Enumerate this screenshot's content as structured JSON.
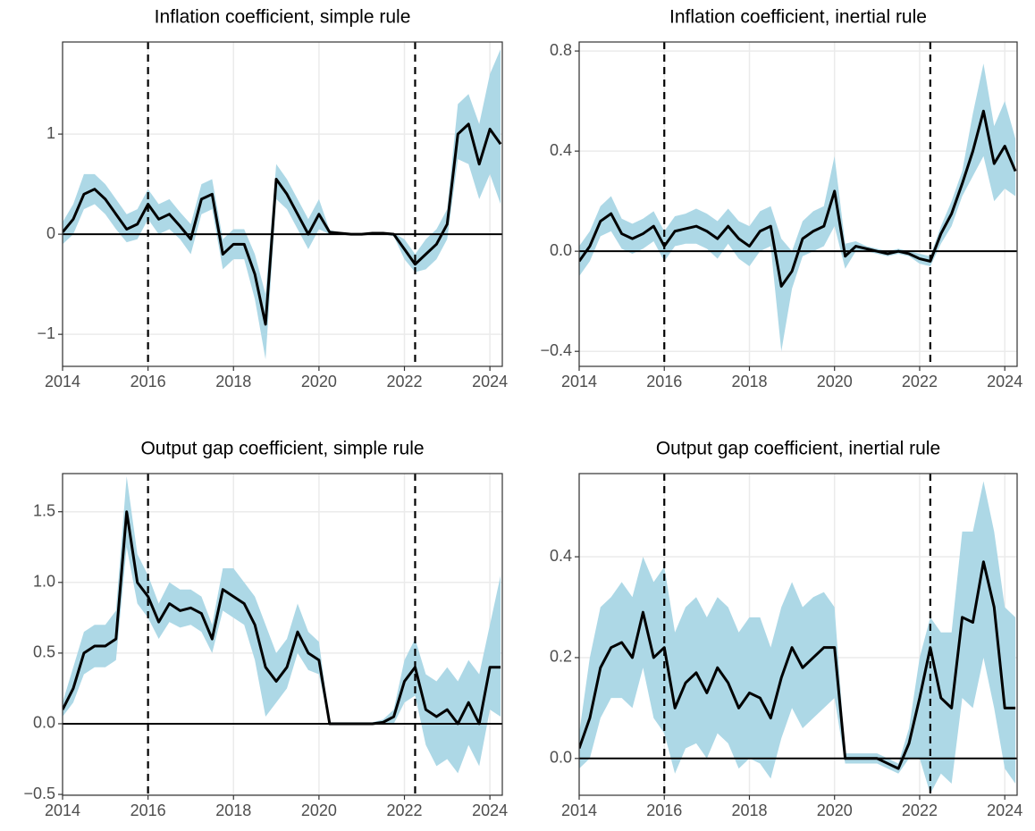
{
  "chart_data": [
    {
      "type": "line",
      "title": "Inflation coefficient, simple rule",
      "x": [
        2014,
        2014.25,
        2014.5,
        2014.75,
        2015,
        2015.25,
        2015.5,
        2015.75,
        2016,
        2016.25,
        2016.5,
        2016.75,
        2017,
        2017.25,
        2017.5,
        2017.75,
        2018,
        2018.25,
        2018.5,
        2018.75,
        2019,
        2019.25,
        2019.5,
        2019.75,
        2020,
        2020.25,
        2020.5,
        2020.75,
        2021,
        2021.25,
        2021.5,
        2021.75,
        2022,
        2022.25,
        2022.5,
        2022.75,
        2023,
        2023.25,
        2023.5,
        2023.75,
        2024,
        2024.25
      ],
      "series": [
        {
          "color": "#000000",
          "values": [
            0.02,
            0.15,
            0.4,
            0.45,
            0.35,
            0.2,
            0.05,
            0.1,
            0.3,
            0.15,
            0.2,
            0.08,
            -0.05,
            0.35,
            0.4,
            -0.2,
            -0.1,
            -0.1,
            -0.4,
            -0.9,
            0.55,
            0.4,
            0.2,
            0.0,
            0.2,
            0.02,
            0.01,
            0.0,
            0.0,
            0.01,
            0.01,
            0.0,
            -0.15,
            -0.3,
            -0.2,
            -0.1,
            0.1,
            1.0,
            1.1,
            0.7,
            1.05,
            0.9
          ]
        }
      ],
      "band": {
        "color": "#add8e6",
        "lower": [
          -0.1,
          0.0,
          0.25,
          0.3,
          0.2,
          0.05,
          -0.08,
          -0.05,
          0.15,
          0.0,
          0.05,
          -0.05,
          -0.2,
          0.2,
          0.25,
          -0.35,
          -0.25,
          -0.25,
          -0.65,
          -1.25,
          0.35,
          0.25,
          0.05,
          -0.15,
          0.05,
          0.0,
          0.0,
          -0.01,
          -0.01,
          0.0,
          0.0,
          -0.02,
          -0.25,
          -0.38,
          -0.35,
          -0.25,
          -0.05,
          0.75,
          0.7,
          0.35,
          0.6,
          0.3
        ],
        "upper": [
          0.12,
          0.3,
          0.6,
          0.6,
          0.5,
          0.35,
          0.2,
          0.25,
          0.45,
          0.3,
          0.35,
          0.22,
          0.1,
          0.5,
          0.55,
          -0.05,
          0.05,
          0.05,
          -0.2,
          -0.6,
          0.7,
          0.55,
          0.35,
          0.15,
          0.35,
          0.04,
          0.02,
          0.01,
          0.01,
          0.02,
          0.02,
          0.01,
          -0.05,
          -0.2,
          -0.05,
          0.05,
          0.25,
          1.3,
          1.4,
          1.1,
          1.6,
          1.85
        ]
      },
      "vlines": [
        2016,
        2022.25
      ],
      "hline": 0,
      "xlim": [
        2014,
        2024.29
      ],
      "xticks": [
        2014,
        2016,
        2018,
        2020,
        2022,
        2024
      ],
      "ylim": [
        -1.32,
        1.92
      ],
      "yticks": [
        {
          "value": -1,
          "label": "−1"
        },
        0,
        1
      ],
      "grid": true
    },
    {
      "type": "line",
      "title": "Inflation coefficient, inertial rule",
      "x": [
        2014,
        2014.25,
        2014.5,
        2014.75,
        2015,
        2015.25,
        2015.5,
        2015.75,
        2016,
        2016.25,
        2016.5,
        2016.75,
        2017,
        2017.25,
        2017.5,
        2017.75,
        2018,
        2018.25,
        2018.5,
        2018.75,
        2019,
        2019.25,
        2019.5,
        2019.75,
        2020,
        2020.25,
        2020.5,
        2020.75,
        2021,
        2021.25,
        2021.5,
        2021.75,
        2022,
        2022.25,
        2022.5,
        2022.75,
        2023,
        2023.25,
        2023.5,
        2023.75,
        2024,
        2024.25
      ],
      "series": [
        {
          "color": "#000000",
          "values": [
            -0.04,
            0.02,
            0.12,
            0.15,
            0.07,
            0.05,
            0.07,
            0.1,
            0.02,
            0.08,
            0.09,
            0.1,
            0.08,
            0.05,
            0.1,
            0.05,
            0.02,
            0.08,
            0.1,
            -0.14,
            -0.08,
            0.05,
            0.08,
            0.1,
            0.24,
            -0.02,
            0.02,
            0.01,
            0.0,
            -0.01,
            0.0,
            -0.01,
            -0.03,
            -0.04,
            0.07,
            0.15,
            0.27,
            0.4,
            0.56,
            0.35,
            0.42,
            0.32
          ]
        }
      ],
      "band": {
        "color": "#add8e6",
        "lower": [
          -0.1,
          -0.04,
          0.06,
          0.08,
          0.01,
          -0.01,
          0.01,
          0.04,
          -0.04,
          0.02,
          0.03,
          0.03,
          0.01,
          -0.03,
          0.03,
          -0.03,
          -0.06,
          0.0,
          0.02,
          -0.4,
          -0.15,
          -0.02,
          0.0,
          0.02,
          0.1,
          -0.07,
          0.0,
          0.0,
          -0.01,
          -0.02,
          -0.01,
          -0.02,
          -0.05,
          -0.06,
          0.03,
          0.1,
          0.22,
          0.3,
          0.38,
          0.2,
          0.25,
          0.22
        ],
        "upper": [
          0.02,
          0.08,
          0.18,
          0.22,
          0.13,
          0.11,
          0.13,
          0.16,
          0.08,
          0.14,
          0.15,
          0.17,
          0.15,
          0.12,
          0.17,
          0.12,
          0.1,
          0.16,
          0.18,
          0.05,
          0.0,
          0.12,
          0.16,
          0.18,
          0.38,
          0.03,
          0.04,
          0.02,
          0.01,
          0.0,
          0.01,
          0.0,
          -0.01,
          -0.02,
          0.1,
          0.2,
          0.32,
          0.55,
          0.75,
          0.5,
          0.6,
          0.45
        ]
      },
      "vlines": [
        2016,
        2022.25
      ],
      "hline": 0,
      "xlim": [
        2014,
        2024.29
      ],
      "xticks": [
        2014,
        2016,
        2018,
        2020,
        2022,
        2024
      ],
      "ylim": [
        -0.46,
        0.836
      ],
      "yticks": [
        {
          "value": -0.4,
          "label": "−0.4"
        },
        {
          "value": 0,
          "label": "0.0"
        },
        0.4,
        0.8
      ],
      "grid": true
    },
    {
      "type": "line",
      "title": "Output gap coefficient, simple rule",
      "x": [
        2014,
        2014.25,
        2014.5,
        2014.75,
        2015,
        2015.25,
        2015.5,
        2015.75,
        2016,
        2016.25,
        2016.5,
        2016.75,
        2017,
        2017.25,
        2017.5,
        2017.75,
        2018,
        2018.25,
        2018.5,
        2018.75,
        2019,
        2019.25,
        2019.5,
        2019.75,
        2020,
        2020.25,
        2020.5,
        2020.75,
        2021,
        2021.25,
        2021.5,
        2021.75,
        2022,
        2022.25,
        2022.5,
        2022.75,
        2023,
        2023.25,
        2023.5,
        2023.75,
        2024,
        2024.25
      ],
      "series": [
        {
          "color": "#000000",
          "values": [
            0.1,
            0.25,
            0.5,
            0.55,
            0.55,
            0.6,
            1.5,
            1.0,
            0.9,
            0.72,
            0.85,
            0.8,
            0.82,
            0.78,
            0.6,
            0.95,
            0.9,
            0.85,
            0.7,
            0.4,
            0.3,
            0.4,
            0.65,
            0.5,
            0.45,
            0.0,
            0.0,
            0.0,
            0.0,
            0.0,
            0.01,
            0.05,
            0.3,
            0.4,
            0.1,
            0.05,
            0.1,
            0.0,
            0.15,
            0.0,
            0.4,
            0.4
          ]
        }
      ],
      "band": {
        "color": "#add8e6",
        "lower": [
          0.05,
          0.15,
          0.35,
          0.4,
          0.4,
          0.45,
          1.25,
          0.85,
          0.75,
          0.6,
          0.72,
          0.68,
          0.7,
          0.65,
          0.5,
          0.8,
          0.75,
          0.7,
          0.45,
          0.05,
          0.15,
          0.25,
          0.5,
          0.38,
          0.35,
          -0.01,
          -0.01,
          -0.01,
          -0.01,
          -0.01,
          0.0,
          0.0,
          0.15,
          0.2,
          -0.15,
          -0.3,
          -0.25,
          -0.35,
          -0.15,
          -0.3,
          0.1,
          0.05
        ],
        "upper": [
          0.15,
          0.4,
          0.65,
          0.7,
          0.7,
          0.8,
          1.75,
          1.2,
          1.05,
          0.85,
          1.0,
          0.95,
          0.95,
          0.9,
          0.7,
          1.1,
          1.1,
          1.0,
          0.9,
          0.7,
          0.5,
          0.6,
          0.85,
          0.65,
          0.58,
          0.01,
          0.01,
          0.01,
          0.01,
          0.01,
          0.03,
          0.1,
          0.45,
          0.6,
          0.35,
          0.3,
          0.4,
          0.3,
          0.45,
          0.35,
          0.7,
          1.05
        ]
      },
      "vlines": [
        2016,
        2022.25
      ],
      "hline": 0,
      "xlim": [
        2014,
        2024.29
      ],
      "xticks": [
        2014,
        2016,
        2018,
        2020,
        2022,
        2024
      ],
      "ylim": [
        -0.506,
        1.77
      ],
      "yticks": [
        {
          "value": -0.5,
          "label": "−0.5"
        },
        {
          "value": 0,
          "label": "0.0"
        },
        0.5,
        {
          "value": 1,
          "label": "1.0"
        },
        1.5
      ],
      "grid": true
    },
    {
      "type": "line",
      "title": "Output gap coefficient, inertial rule",
      "x": [
        2014,
        2014.25,
        2014.5,
        2014.75,
        2015,
        2015.25,
        2015.5,
        2015.75,
        2016,
        2016.25,
        2016.5,
        2016.75,
        2017,
        2017.25,
        2017.5,
        2017.75,
        2018,
        2018.25,
        2018.5,
        2018.75,
        2019,
        2019.25,
        2019.5,
        2019.75,
        2020,
        2020.25,
        2020.5,
        2020.75,
        2021,
        2021.25,
        2021.5,
        2021.75,
        2022,
        2022.25,
        2022.5,
        2022.75,
        2023,
        2023.25,
        2023.5,
        2023.75,
        2024,
        2024.25
      ],
      "series": [
        {
          "color": "#000000",
          "values": [
            0.02,
            0.08,
            0.18,
            0.22,
            0.23,
            0.2,
            0.29,
            0.2,
            0.22,
            0.1,
            0.15,
            0.17,
            0.13,
            0.18,
            0.15,
            0.1,
            0.13,
            0.12,
            0.08,
            0.16,
            0.22,
            0.18,
            0.2,
            0.22,
            0.22,
            0.0,
            0.0,
            0.0,
            0.0,
            -0.01,
            -0.02,
            0.03,
            0.12,
            0.22,
            0.12,
            0.1,
            0.28,
            0.27,
            0.39,
            0.3,
            0.1,
            0.1
          ]
        }
      ],
      "band": {
        "color": "#add8e6",
        "lower": [
          -0.02,
          0.0,
          0.08,
          0.12,
          0.12,
          0.1,
          0.18,
          0.08,
          0.05,
          -0.03,
          0.02,
          0.03,
          0.0,
          0.05,
          0.03,
          -0.02,
          0.0,
          -0.01,
          -0.04,
          0.04,
          0.1,
          0.06,
          0.08,
          0.1,
          0.12,
          -0.01,
          -0.01,
          -0.01,
          -0.01,
          -0.02,
          -0.03,
          0.0,
          0.0,
          -0.07,
          -0.03,
          -0.05,
          0.12,
          0.1,
          0.2,
          0.1,
          -0.02,
          -0.05
        ],
        "upper": [
          0.05,
          0.2,
          0.3,
          0.32,
          0.35,
          0.32,
          0.4,
          0.35,
          0.38,
          0.25,
          0.3,
          0.32,
          0.28,
          0.32,
          0.3,
          0.25,
          0.28,
          0.28,
          0.22,
          0.3,
          0.35,
          0.3,
          0.32,
          0.33,
          0.3,
          0.01,
          0.01,
          0.01,
          0.01,
          0.0,
          -0.01,
          0.06,
          0.2,
          0.28,
          0.25,
          0.25,
          0.45,
          0.45,
          0.55,
          0.45,
          0.3,
          0.28
        ]
      },
      "vlines": [
        2016,
        2022.25
      ],
      "hline": 0,
      "xlim": [
        2014,
        2024.29
      ],
      "xticks": [
        2014,
        2016,
        2018,
        2020,
        2022,
        2024
      ],
      "ylim": [
        -0.073,
        0.565
      ],
      "yticks": [
        {
          "value": 0,
          "label": "0.0"
        },
        0.2,
        0.4
      ],
      "grid": true
    }
  ]
}
